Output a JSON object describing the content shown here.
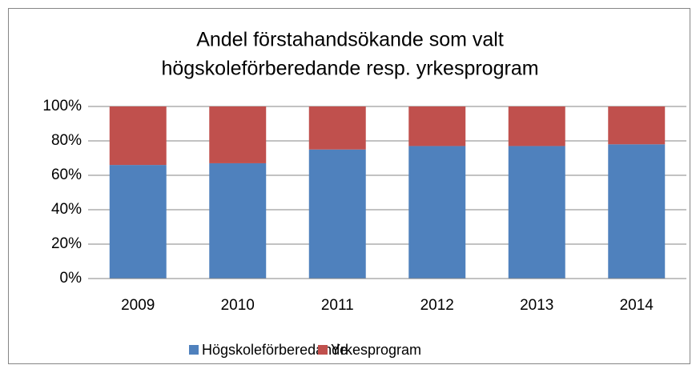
{
  "chart_data": {
    "type": "stacked_bar",
    "title": [
      "Andel förstahandsökande som valt",
      "högskoleförberedande resp. yrkesprogram"
    ],
    "categories": [
      "2009",
      "2010",
      "2011",
      "2012",
      "2013",
      "2014"
    ],
    "series": [
      {
        "name": "Högskoleförberedande",
        "color": "#4f81bd",
        "values": [
          66,
          67,
          75,
          77,
          77,
          78
        ]
      },
      {
        "name": "Yrkesprogram",
        "color": "#c0504d",
        "values": [
          34,
          33,
          25,
          23,
          23,
          22
        ]
      }
    ],
    "ylim": [
      0,
      100
    ],
    "yticks": [
      {
        "value": 0,
        "label": "0%"
      },
      {
        "value": 20,
        "label": "20%"
      },
      {
        "value": 40,
        "label": "40%"
      },
      {
        "value": 60,
        "label": "60%"
      },
      {
        "value": 80,
        "label": "80%"
      },
      {
        "value": 100,
        "label": "100%"
      }
    ],
    "grid": true,
    "legend": "bottom"
  }
}
